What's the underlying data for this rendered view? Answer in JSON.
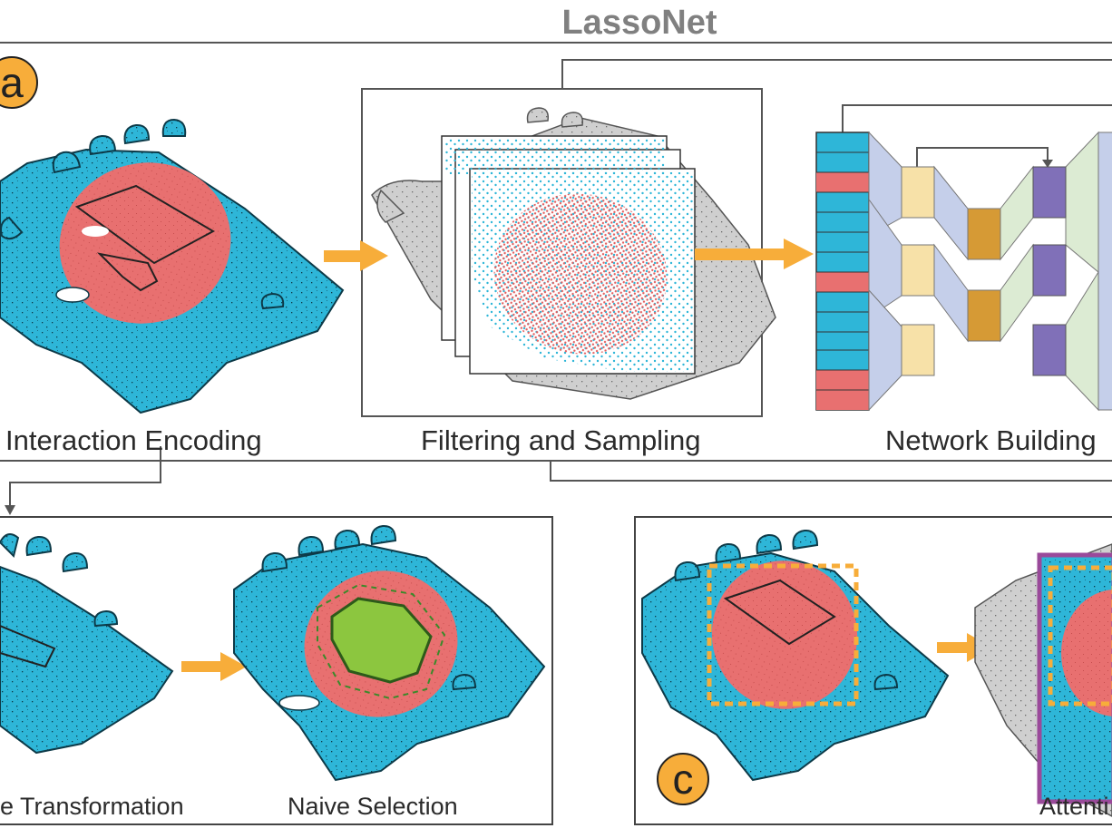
{
  "title": "LassoNet",
  "panels": {
    "a": {
      "badge": "a",
      "steps": [
        "Interaction Encoding",
        "Filtering and Sampling",
        "Network Building"
      ]
    },
    "b": {
      "steps": [
        "e Transformation",
        "Naive Selection"
      ]
    },
    "c": {
      "badge": "c",
      "steps": [
        "Attenti"
      ]
    }
  },
  "colors": {
    "point_cloud_blue": "#2eb6d8",
    "selection_red": "#e87070",
    "filtered_gray": "#c8c8c8",
    "arrow_orange": "#f7ad3a",
    "selection_green": "#8cc63f",
    "network_encoder_blue": "#c5cfea",
    "network_feature_yellow": "#f7e1a8",
    "network_bottleneck_orange": "#d69a35",
    "network_decoder_green": "#dcebd3",
    "network_feature_purple": "#8070b8",
    "attention_frame_purple": "#9a4a9a"
  }
}
